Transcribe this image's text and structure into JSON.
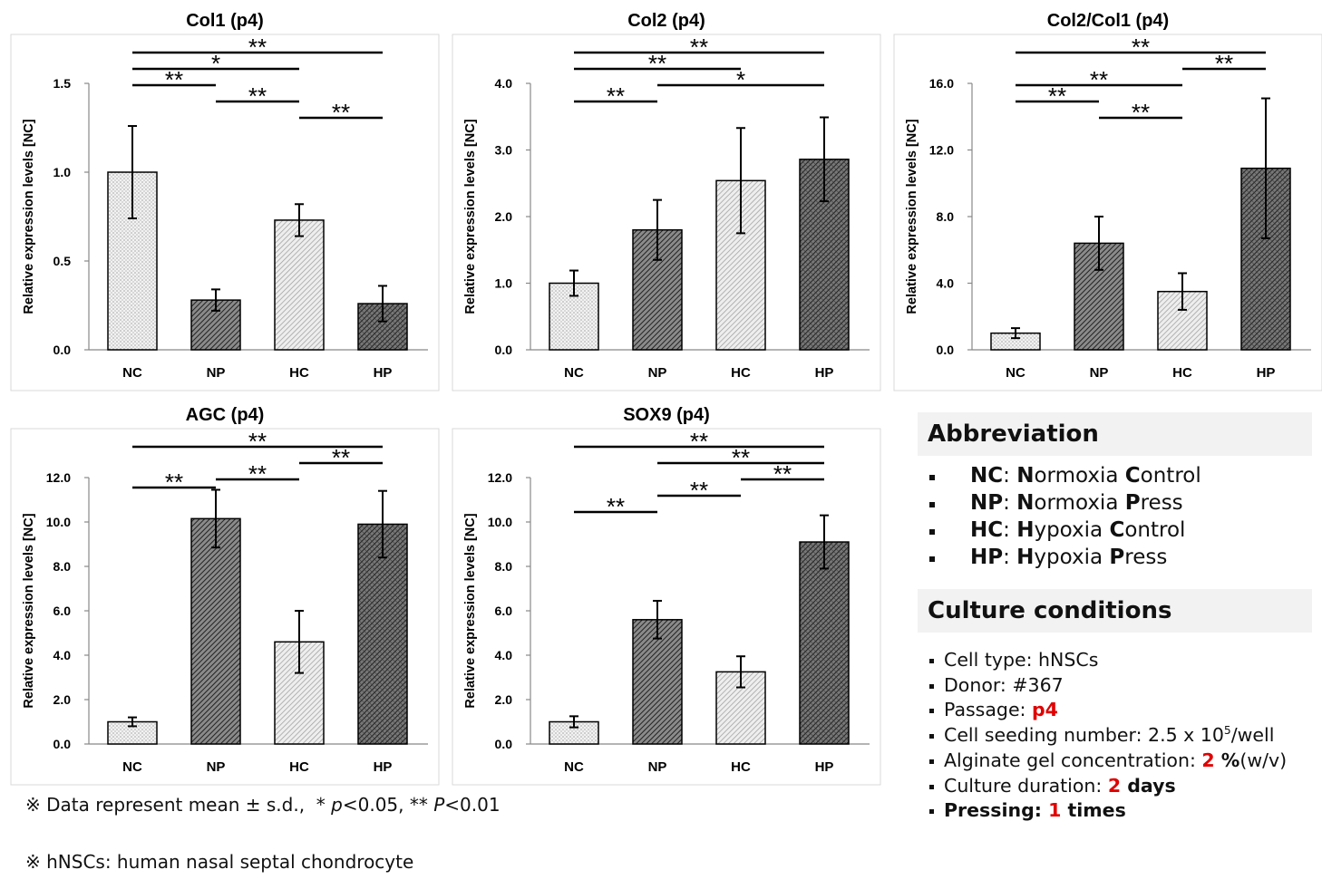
{
  "chart_data": [
    {
      "type": "bar",
      "title": "Col1 (p4)",
      "ylabel": "Relative expression levels [NC]",
      "categories": [
        "NC",
        "NP",
        "HC",
        "HP"
      ],
      "values": [
        1.0,
        0.28,
        0.73,
        0.26
      ],
      "errors": [
        0.26,
        0.06,
        0.09,
        0.1
      ],
      "ylim": [
        0,
        1.5
      ],
      "yticks": [
        {
          "value": 0,
          "label": "0.0"
        },
        0.5,
        {
          "value": 1,
          "label": "1.0"
        },
        1.5
      ],
      "annotations": [
        {
          "from": "NC",
          "to": "HP",
          "label": "**"
        },
        {
          "from": "NC",
          "to": "HC",
          "label": "*"
        },
        {
          "from": "NC",
          "to": "NP",
          "label": "**"
        },
        {
          "from": "NP",
          "to": "HC",
          "label": "**"
        },
        {
          "from": "HC",
          "to": "HP",
          "label": "**"
        }
      ]
    },
    {
      "type": "bar",
      "title": "Col2 (p4)",
      "ylabel": "Relative expression levels [NC]",
      "categories": [
        "NC",
        "NP",
        "HC",
        "HP"
      ],
      "values": [
        1.0,
        1.8,
        2.54,
        2.86
      ],
      "errors": [
        0.19,
        0.45,
        0.79,
        0.63
      ],
      "ylim": [
        0,
        4
      ],
      "yticks": [
        {
          "value": 0,
          "label": "0.0"
        },
        {
          "value": 1,
          "label": "1.0"
        },
        {
          "value": 2,
          "label": "2.0"
        },
        {
          "value": 3,
          "label": "3.0"
        },
        {
          "value": 4,
          "label": "4.0"
        }
      ],
      "annotations": [
        {
          "from": "NC",
          "to": "HP",
          "label": "**"
        },
        {
          "from": "NC",
          "to": "HC",
          "label": "**"
        },
        {
          "from": "NP",
          "to": "HP",
          "label": "*"
        },
        {
          "from": "NC",
          "to": "NP",
          "label": "**"
        }
      ]
    },
    {
      "type": "bar",
      "title": "Col2/Col1 (p4)",
      "ylabel": "Relative expression levels [NC]",
      "categories": [
        "NC",
        "NP",
        "HC",
        "HP"
      ],
      "values": [
        1.0,
        6.4,
        3.5,
        10.9
      ],
      "errors": [
        0.3,
        1.6,
        1.1,
        4.2
      ],
      "ylim": [
        0,
        16
      ],
      "yticks": [
        {
          "value": 0,
          "label": "0.0"
        },
        {
          "value": 4,
          "label": "4.0"
        },
        {
          "value": 8,
          "label": "8.0"
        },
        {
          "value": 12,
          "label": "12.0"
        },
        {
          "value": 16,
          "label": "16.0"
        }
      ],
      "annotations": [
        {
          "from": "NC",
          "to": "HP",
          "label": "**"
        },
        {
          "from": "HC",
          "to": "HP",
          "label": "**"
        },
        {
          "from": "NC",
          "to": "HC",
          "label": "**"
        },
        {
          "from": "NC",
          "to": "NP",
          "label": "**"
        },
        {
          "from": "NP",
          "to": "HC",
          "label": "**"
        }
      ]
    },
    {
      "type": "bar",
      "title": "AGC (p4)",
      "ylabel": "Relative expression levels [NC]",
      "categories": [
        "NC",
        "NP",
        "HC",
        "HP"
      ],
      "values": [
        1.0,
        10.15,
        4.6,
        9.9
      ],
      "errors": [
        0.2,
        1.3,
        1.4,
        1.5
      ],
      "ylim": [
        0,
        12
      ],
      "yticks": [
        {
          "value": 0,
          "label": "0.0"
        },
        {
          "value": 2,
          "label": "2.0"
        },
        {
          "value": 4,
          "label": "4.0"
        },
        {
          "value": 6,
          "label": "6.0"
        },
        {
          "value": 8,
          "label": "8.0"
        },
        {
          "value": 10,
          "label": "10.0"
        },
        {
          "value": 12,
          "label": "12.0"
        }
      ],
      "annotations": [
        {
          "from": "NC",
          "to": "HP",
          "label": "**"
        },
        {
          "from": "HC",
          "to": "HP",
          "label": "**"
        },
        {
          "from": "NP",
          "to": "HC",
          "label": "**"
        },
        {
          "from": "NC",
          "to": "NP",
          "label": "**"
        }
      ]
    },
    {
      "type": "bar",
      "title": "SOX9 (p4)",
      "ylabel": "Relative expression levels [NC]",
      "categories": [
        "NC",
        "NP",
        "HC",
        "HP"
      ],
      "values": [
        1.0,
        5.6,
        3.25,
        9.1
      ],
      "errors": [
        0.25,
        0.85,
        0.7,
        1.2
      ],
      "ylim": [
        0,
        12
      ],
      "yticks": [
        {
          "value": 0,
          "label": "0.0"
        },
        {
          "value": 2,
          "label": "2.0"
        },
        {
          "value": 4,
          "label": "4.0"
        },
        {
          "value": 6,
          "label": "6.0"
        },
        {
          "value": 8,
          "label": "8.0"
        },
        {
          "value": 10,
          "label": "10.0"
        },
        {
          "value": 12,
          "label": "12.0"
        }
      ],
      "annotations": [
        {
          "from": "NC",
          "to": "HP",
          "label": "**"
        },
        {
          "from": "NP",
          "to": "HP",
          "label": "**"
        },
        {
          "from": "HC",
          "to": "HP",
          "label": "**"
        },
        {
          "from": "NP",
          "to": "HC",
          "label": "**"
        },
        {
          "from": "NC",
          "to": "NP",
          "label": "**"
        }
      ]
    }
  ],
  "abbreviation": {
    "title": "Abbreviation",
    "items": [
      [
        {
          "text": "NC",
          "style": "bold"
        },
        {
          "text": ": "
        },
        {
          "text": "N",
          "style": "bold"
        },
        {
          "text": "ormoxia "
        },
        {
          "text": "C",
          "style": "bold"
        },
        {
          "text": "ontrol"
        }
      ],
      [
        {
          "text": "NP",
          "style": "bold"
        },
        {
          "text": ": "
        },
        {
          "text": "N",
          "style": "bold"
        },
        {
          "text": "ormoxia "
        },
        {
          "text": "P",
          "style": "bold"
        },
        {
          "text": "ress"
        }
      ],
      [
        {
          "text": "HC",
          "style": "bold"
        },
        {
          "text": ": "
        },
        {
          "text": "H",
          "style": "bold"
        },
        {
          "text": "ypoxia "
        },
        {
          "text": "C",
          "style": "bold"
        },
        {
          "text": "ontrol"
        }
      ],
      [
        {
          "text": "HP",
          "style": "bold"
        },
        {
          "text": ": "
        },
        {
          "text": "H",
          "style": "bold"
        },
        {
          "text": "ypoxia "
        },
        {
          "text": "P",
          "style": "bold"
        },
        {
          "text": "ress"
        }
      ]
    ]
  },
  "culture": {
    "title": "Culture conditions",
    "items": [
      [
        {
          "text": "Cell type: hNSCs"
        }
      ],
      [
        {
          "text": "Donor: #367"
        }
      ],
      [
        {
          "text": "Passage: "
        },
        {
          "text": "p4",
          "style": "red-bold"
        }
      ],
      [
        {
          "text": "Cell seeding number: 2.5 x 10"
        },
        {
          "text": "5",
          "style": "sup"
        },
        {
          "text": "/well"
        }
      ],
      [
        {
          "text": "Alginate gel concentration: "
        },
        {
          "text": "2",
          "style": "red-bold"
        },
        {
          "text": " %",
          "style": "bold"
        },
        {
          "text": "(w/v)"
        }
      ],
      [
        {
          "text": "Culture duration: "
        },
        {
          "text": "2",
          "style": "red-bold"
        },
        {
          "text": " days",
          "style": "bold"
        }
      ],
      [
        {
          "text": "Pressing: ",
          "style": "bold"
        },
        {
          "text": "1",
          "style": "red-bold"
        },
        {
          "text": " times",
          "style": "bold"
        }
      ]
    ]
  },
  "notes": [
    [
      {
        "text": "※ Data represent mean ± s.d.,  * "
      },
      {
        "text": "p",
        "style": "italic"
      },
      {
        "text": "<0.05, ** "
      },
      {
        "text": "P",
        "style": "italic"
      },
      {
        "text": "<0.01"
      }
    ],
    [
      {
        "text": "※ hNSCs: human nasal septal chondrocyte"
      }
    ]
  ]
}
